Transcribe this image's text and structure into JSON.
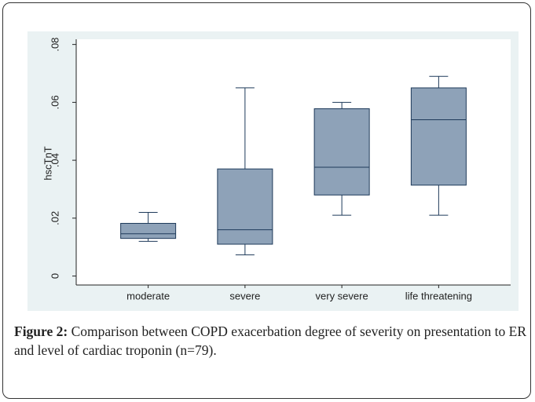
{
  "chart_data": {
    "type": "box",
    "y_label": "hscTnT",
    "categories": [
      "moderate",
      "severe",
      "very severe",
      "life threatening"
    ],
    "boxes": [
      {
        "low": 0.012,
        "q1": 0.013,
        "median": 0.0146,
        "q3": 0.0182,
        "high": 0.022
      },
      {
        "low": 0.0073,
        "q1": 0.011,
        "median": 0.016,
        "q3": 0.037,
        "high": 0.065
      },
      {
        "low": 0.021,
        "q1": 0.028,
        "median": 0.0376,
        "q3": 0.0578,
        "high": 0.06
      },
      {
        "low": 0.021,
        "q1": 0.0314,
        "median": 0.054,
        "q3": 0.065,
        "high": 0.069
      }
    ],
    "color": "#8ea2b8",
    "ylim": [
      -0.0031,
      0.0818
    ],
    "yticks": [
      0,
      {
        "value": 0.02,
        "label": ".02"
      },
      {
        "value": 0.04,
        "label": ".04"
      },
      {
        "value": 0.06,
        "label": ".06"
      },
      {
        "value": 0.08,
        "label": ".08"
      }
    ]
  },
  "caption": {
    "label": "Figure 2:",
    "text": "Comparison between COPD exacerbation degree of severity on presentation to ER and level of cardiac troponin (n=79)."
  }
}
